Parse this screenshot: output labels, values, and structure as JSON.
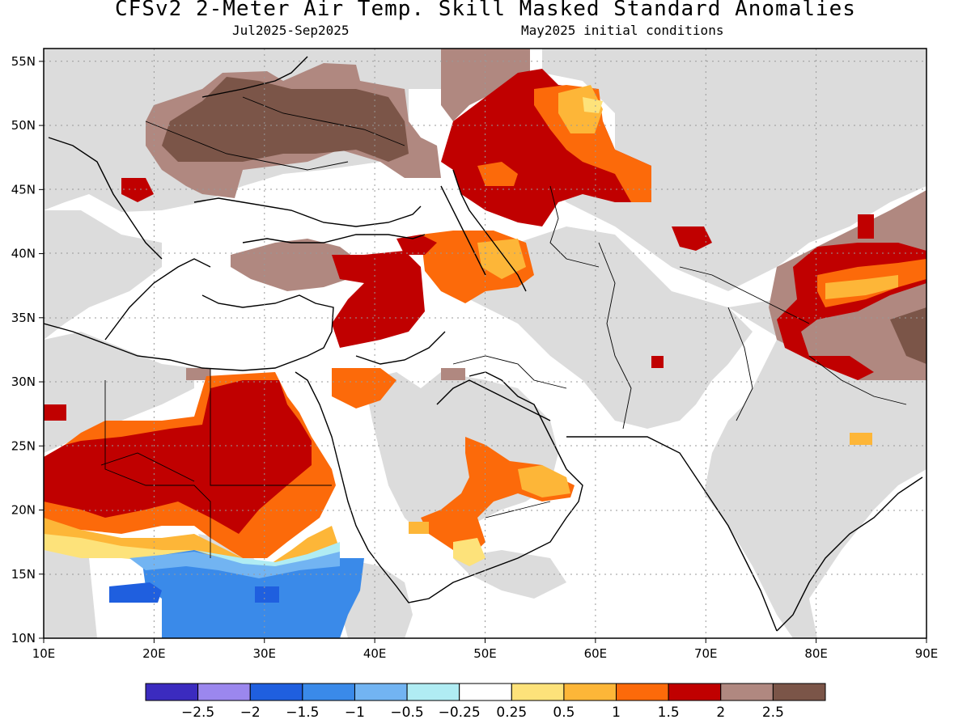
{
  "title": "CFSv2 2-Meter Air Temp. Skill Masked Standard Anomalies",
  "subtitle_left": "Jul2025-Sep2025",
  "subtitle_right": "May2025 initial conditions",
  "map": {
    "lon_range": [
      10,
      90
    ],
    "lat_range": [
      10,
      56
    ],
    "lat_ticks": [
      {
        "value": 55,
        "label": "55N"
      },
      {
        "value": 50,
        "label": "50N"
      },
      {
        "value": 45,
        "label": "45N"
      },
      {
        "value": 40,
        "label": "40N"
      },
      {
        "value": 35,
        "label": "35N"
      },
      {
        "value": 30,
        "label": "30N"
      },
      {
        "value": 25,
        "label": "25N"
      },
      {
        "value": 20,
        "label": "20N"
      },
      {
        "value": 15,
        "label": "15N"
      },
      {
        "value": 10,
        "label": "10N"
      }
    ],
    "lon_ticks": [
      {
        "value": 10,
        "label": "10E"
      },
      {
        "value": 20,
        "label": "20E"
      },
      {
        "value": 30,
        "label": "30E"
      },
      {
        "value": 40,
        "label": "40E"
      },
      {
        "value": 50,
        "label": "50E"
      },
      {
        "value": 60,
        "label": "60E"
      },
      {
        "value": 70,
        "label": "70E"
      },
      {
        "value": 80,
        "label": "80E"
      },
      {
        "value": 90,
        "label": "90E"
      }
    ],
    "masked_color": "#dcdcdc",
    "ocean_color": "#ffffff"
  },
  "colorbar": {
    "colors": [
      "#3b2bbf",
      "#9b87ee",
      "#1f5fdf",
      "#3a8ae9",
      "#72b4f2",
      "#b0ecf3",
      "#ffffff",
      "#fde27a",
      "#fdb638",
      "#fc6a0a",
      "#c00000",
      "#b08880",
      "#7b5548"
    ],
    "labels": [
      "-2.5",
      "-2",
      "-1.5",
      "-1",
      "-0.5",
      "-0.25",
      "0.25",
      "0.5",
      "1",
      "1.5",
      "2",
      "2.5"
    ]
  }
}
